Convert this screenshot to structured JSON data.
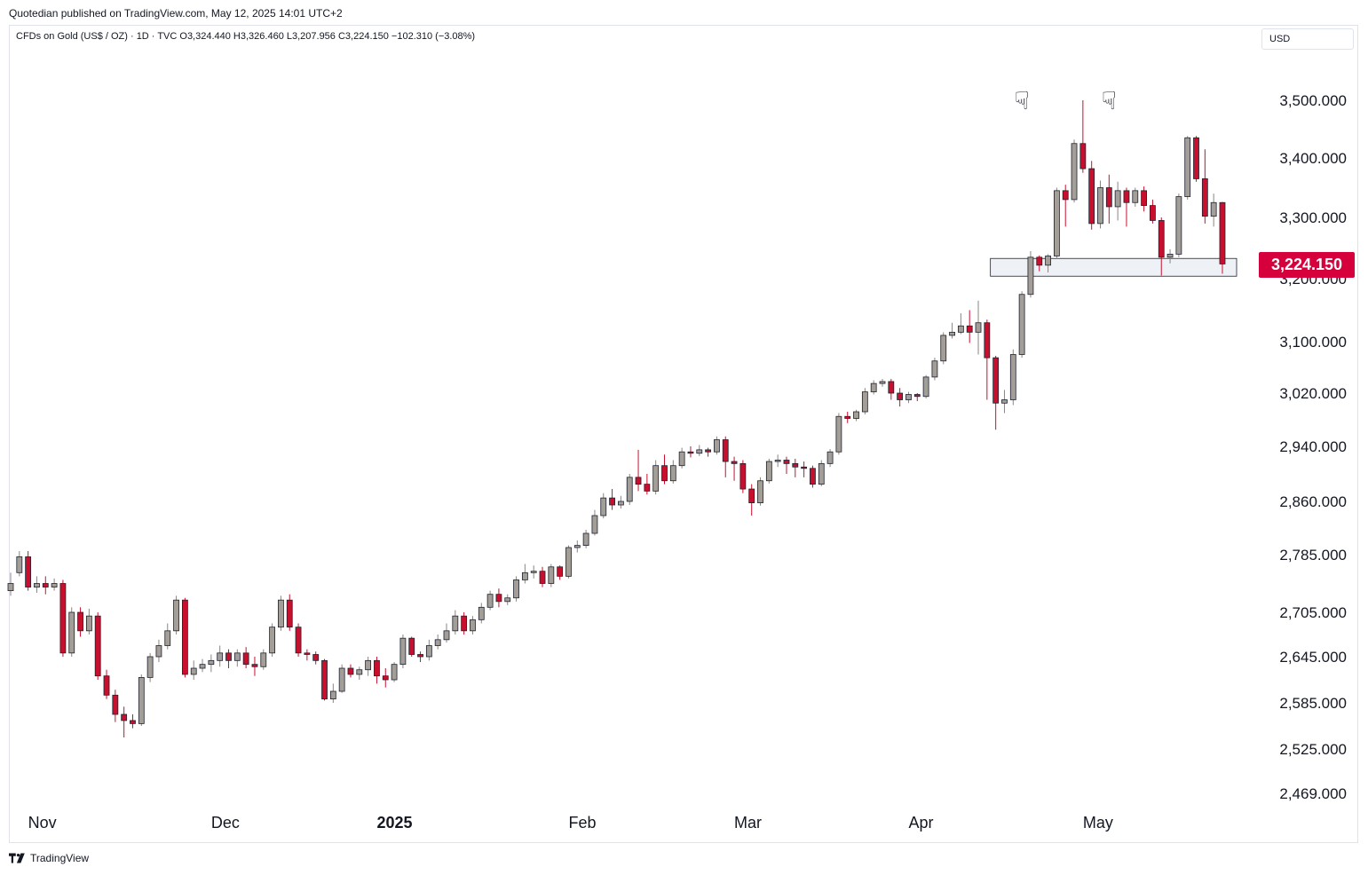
{
  "header": {
    "publisher_text": "Quotedian published on TradingView.com, May 12, 2025 14:01 UTC+2",
    "legend_text": "CFDs on Gold (US$ / OZ) · 1D · TVC  O3,324.440  H3,326.460  L3,207.956  C3,224.150  −102.310 (−3.08%)",
    "currency": "USD"
  },
  "price_badge": "3,224.150",
  "footer": {
    "brand": "TradingView"
  },
  "colors": {
    "up": "#a39e98",
    "down": "#c8102e",
    "wick_up": "#8a8580",
    "wick_down": "#c8102e",
    "zone": "#eef1f6"
  },
  "chart_data": {
    "type": "candlestick",
    "symbol": "CFDs on Gold (US$ / OZ)",
    "interval": "1D",
    "y_ticks": [
      3500,
      3400,
      3300,
      3100,
      3020,
      2940,
      2860,
      2785,
      2705,
      2645,
      2585,
      2525,
      2469
    ],
    "y_tick_labels": [
      "3,500.000",
      "3,400.000",
      "3,300.000",
      "3,100.000",
      "3,020.000",
      "2,940.000",
      "2,860.000",
      "2,785.000",
      "2,705.000",
      "2,645.000",
      "2,585.000",
      "2,525.000",
      "2,469.000"
    ],
    "hidden_tick_label": "3,200.000",
    "hidden_tick_value": 3200,
    "x_labels": [
      {
        "label": "Nov",
        "bar": 2,
        "bold": false
      },
      {
        "label": "Dec",
        "bar": 23,
        "bold": false
      },
      {
        "label": "2025",
        "bar": 42,
        "bold": true
      },
      {
        "label": "Feb",
        "bar": 64,
        "bold": false
      },
      {
        "label": "Mar",
        "bar": 83,
        "bold": false
      },
      {
        "label": "Apr",
        "bar": 103,
        "bold": false
      },
      {
        "label": "May",
        "bar": 123,
        "bold": false
      }
    ],
    "support_zone": {
      "from_bar": 113,
      "low": 3204,
      "high": 3233
    },
    "top_markers": [
      {
        "bar": 116,
        "price": 3500
      },
      {
        "bar": 126,
        "price": 3500
      }
    ],
    "last_close": 3224.15,
    "candles": [
      [
        2735,
        2745,
        2728,
        2760
      ],
      [
        2760,
        2782,
        2755,
        2790
      ],
      [
        2782,
        2740,
        2735,
        2790
      ],
      [
        2740,
        2745,
        2732,
        2755
      ],
      [
        2745,
        2740,
        2730,
        2755
      ],
      [
        2740,
        2745,
        2735,
        2752
      ],
      [
        2745,
        2650,
        2645,
        2750
      ],
      [
        2650,
        2705,
        2645,
        2712
      ],
      [
        2705,
        2680,
        2672,
        2712
      ],
      [
        2680,
        2700,
        2675,
        2710
      ],
      [
        2700,
        2620,
        2615,
        2705
      ],
      [
        2620,
        2595,
        2590,
        2628
      ],
      [
        2595,
        2570,
        2560,
        2602
      ],
      [
        2570,
        2562,
        2540,
        2580
      ],
      [
        2562,
        2558,
        2552,
        2570
      ],
      [
        2558,
        2618,
        2555,
        2622
      ],
      [
        2618,
        2645,
        2612,
        2650
      ],
      [
        2645,
        2660,
        2638,
        2668
      ],
      [
        2660,
        2680,
        2655,
        2690
      ],
      [
        2680,
        2722,
        2675,
        2728
      ],
      [
        2722,
        2622,
        2618,
        2725
      ],
      [
        2622,
        2630,
        2615,
        2640
      ],
      [
        2630,
        2635,
        2625,
        2642
      ],
      [
        2635,
        2640,
        2625,
        2648
      ],
      [
        2640,
        2650,
        2632,
        2660
      ],
      [
        2650,
        2640,
        2630,
        2655
      ],
      [
        2640,
        2650,
        2632,
        2655
      ],
      [
        2650,
        2635,
        2630,
        2658
      ],
      [
        2635,
        2632,
        2620,
        2645
      ],
      [
        2632,
        2650,
        2628,
        2655
      ],
      [
        2650,
        2685,
        2645,
        2690
      ],
      [
        2685,
        2722,
        2680,
        2728
      ],
      [
        2722,
        2685,
        2680,
        2730
      ],
      [
        2685,
        2650,
        2645,
        2690
      ],
      [
        2650,
        2648,
        2640,
        2655
      ],
      [
        2648,
        2640,
        2635,
        2652
      ],
      [
        2640,
        2590,
        2588,
        2642
      ],
      [
        2590,
        2600,
        2585,
        2610
      ],
      [
        2600,
        2630,
        2598,
        2635
      ],
      [
        2630,
        2622,
        2618,
        2635
      ],
      [
        2622,
        2628,
        2615,
        2632
      ],
      [
        2628,
        2640,
        2620,
        2645
      ],
      [
        2640,
        2620,
        2610,
        2645
      ],
      [
        2620,
        2615,
        2605,
        2630
      ],
      [
        2615,
        2635,
        2612,
        2638
      ],
      [
        2635,
        2670,
        2630,
        2675
      ],
      [
        2670,
        2648,
        2645,
        2672
      ],
      [
        2648,
        2645,
        2638,
        2652
      ],
      [
        2645,
        2660,
        2640,
        2668
      ],
      [
        2660,
        2668,
        2655,
        2675
      ],
      [
        2668,
        2680,
        2664,
        2690
      ],
      [
        2680,
        2700,
        2675,
        2708
      ],
      [
        2700,
        2680,
        2675,
        2705
      ],
      [
        2680,
        2695,
        2675,
        2700
      ],
      [
        2695,
        2712,
        2690,
        2718
      ],
      [
        2712,
        2730,
        2708,
        2735
      ],
      [
        2730,
        2720,
        2712,
        2738
      ],
      [
        2720,
        2725,
        2715,
        2730
      ],
      [
        2725,
        2750,
        2720,
        2755
      ],
      [
        2750,
        2760,
        2745,
        2772
      ],
      [
        2760,
        2762,
        2752,
        2770
      ],
      [
        2762,
        2745,
        2740,
        2768
      ],
      [
        2745,
        2768,
        2740,
        2772
      ],
      [
        2768,
        2755,
        2750,
        2770
      ],
      [
        2755,
        2795,
        2752,
        2798
      ],
      [
        2795,
        2798,
        2788,
        2805
      ],
      [
        2798,
        2815,
        2794,
        2820
      ],
      [
        2815,
        2840,
        2812,
        2848
      ],
      [
        2840,
        2865,
        2836,
        2872
      ],
      [
        2865,
        2855,
        2848,
        2878
      ],
      [
        2855,
        2860,
        2850,
        2868
      ],
      [
        2860,
        2895,
        2855,
        2900
      ],
      [
        2895,
        2885,
        2875,
        2935
      ],
      [
        2885,
        2875,
        2870,
        2900
      ],
      [
        2875,
        2912,
        2870,
        2920
      ],
      [
        2912,
        2890,
        2885,
        2928
      ],
      [
        2890,
        2912,
        2886,
        2920
      ],
      [
        2912,
        2932,
        2908,
        2938
      ],
      [
        2932,
        2930,
        2924,
        2940
      ],
      [
        2930,
        2935,
        2926,
        2942
      ],
      [
        2935,
        2932,
        2925,
        2938
      ],
      [
        2932,
        2950,
        2928,
        2955
      ],
      [
        2950,
        2918,
        2895,
        2955
      ],
      [
        2918,
        2915,
        2890,
        2925
      ],
      [
        2915,
        2878,
        2872,
        2920
      ],
      [
        2878,
        2858,
        2840,
        2885
      ],
      [
        2858,
        2890,
        2854,
        2895
      ],
      [
        2890,
        2918,
        2886,
        2922
      ],
      [
        2918,
        2920,
        2910,
        2928
      ],
      [
        2920,
        2915,
        2900,
        2925
      ],
      [
        2915,
        2910,
        2895,
        2922
      ],
      [
        2910,
        2908,
        2895,
        2918
      ],
      [
        2908,
        2885,
        2880,
        2912
      ],
      [
        2885,
        2915,
        2882,
        2920
      ],
      [
        2915,
        2932,
        2910,
        2936
      ],
      [
        2932,
        2985,
        2928,
        2990
      ],
      [
        2985,
        2982,
        2975,
        2992
      ],
      [
        2982,
        2992,
        2978,
        2995
      ],
      [
        2992,
        3022,
        2988,
        3028
      ],
      [
        3022,
        3035,
        3018,
        3040
      ],
      [
        3035,
        3038,
        3030,
        3042
      ],
      [
        3038,
        3020,
        3010,
        3042
      ],
      [
        3020,
        3010,
        3000,
        3028
      ],
      [
        3010,
        3018,
        3005,
        3022
      ],
      [
        3018,
        3015,
        3008,
        3020
      ],
      [
        3015,
        3045,
        3012,
        3048
      ],
      [
        3045,
        3070,
        3040,
        3075
      ],
      [
        3070,
        3110,
        3065,
        3115
      ],
      [
        3110,
        3115,
        3105,
        3130
      ],
      [
        3115,
        3125,
        3112,
        3145
      ],
      [
        3125,
        3115,
        3098,
        3150
      ],
      [
        3115,
        3130,
        3080,
        3165
      ],
      [
        3130,
        3075,
        3010,
        3135
      ],
      [
        3075,
        3005,
        2965,
        3078
      ],
      [
        3005,
        3010,
        2990,
        3025
      ],
      [
        3010,
        3080,
        3002,
        3088
      ],
      [
        3080,
        3175,
        3075,
        3180
      ],
      [
        3175,
        3235,
        3170,
        3245
      ],
      [
        3235,
        3222,
        3212,
        3238
      ],
      [
        3222,
        3237,
        3210,
        3240
      ],
      [
        3237,
        3345,
        3232,
        3350
      ],
      [
        3345,
        3330,
        3285,
        3355
      ],
      [
        3330,
        3425,
        3325,
        3432
      ],
      [
        3425,
        3382,
        3375,
        3500
      ],
      [
        3382,
        3290,
        3280,
        3395
      ],
      [
        3290,
        3350,
        3282,
        3362
      ],
      [
        3350,
        3318,
        3290,
        3372
      ],
      [
        3318,
        3345,
        3295,
        3360
      ],
      [
        3345,
        3325,
        3285,
        3350
      ],
      [
        3325,
        3345,
        3318,
        3350
      ],
      [
        3345,
        3320,
        3310,
        3352
      ],
      [
        3320,
        3295,
        3290,
        3330
      ],
      [
        3295,
        3235,
        3205,
        3300
      ],
      [
        3235,
        3240,
        3225,
        3248
      ],
      [
        3240,
        3335,
        3235,
        3340
      ],
      [
        3335,
        3435,
        3330,
        3438
      ],
      [
        3435,
        3365,
        3360,
        3438
      ],
      [
        3365,
        3302,
        3290,
        3415
      ],
      [
        3302,
        3325,
        3285,
        3340
      ],
      [
        3325,
        3224,
        3208,
        3326
      ]
    ]
  }
}
